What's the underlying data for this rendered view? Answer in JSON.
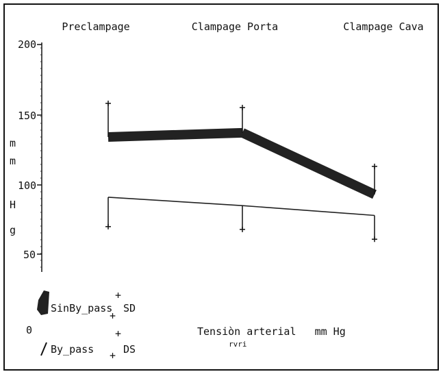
{
  "chart_data": {
    "type": "line",
    "categories": [
      "Preclampage",
      "Clampage Porta",
      "Clampage Cava"
    ],
    "y_ticks": [
      "200",
      "150",
      "100",
      "50",
      "0"
    ],
    "ylim": [
      0,
      200
    ],
    "ylabel_chars": [
      "m",
      "m",
      "H",
      "g"
    ],
    "xlabel": "Tensiòn arterial   mm Hg",
    "xlabel_sub": "rvri",
    "series": [
      {
        "name": "SinBy_pass",
        "values": [
          134,
          137,
          93
        ],
        "err_plus": [
          24,
          18,
          20
        ],
        "color": "#222222",
        "style": "thick"
      },
      {
        "name": "By_pass",
        "values": [
          91,
          85,
          78
        ],
        "err_minus": [
          21,
          17,
          17
        ],
        "color": "#222222",
        "style": "thin"
      }
    ],
    "legend": {
      "position": "bottom-left",
      "items": [
        {
          "name": "SinBy_pass",
          "stat": "SD"
        },
        {
          "name": "By_pass",
          "stat": "DS"
        }
      ],
      "plus": "+"
    },
    "grid": false
  }
}
